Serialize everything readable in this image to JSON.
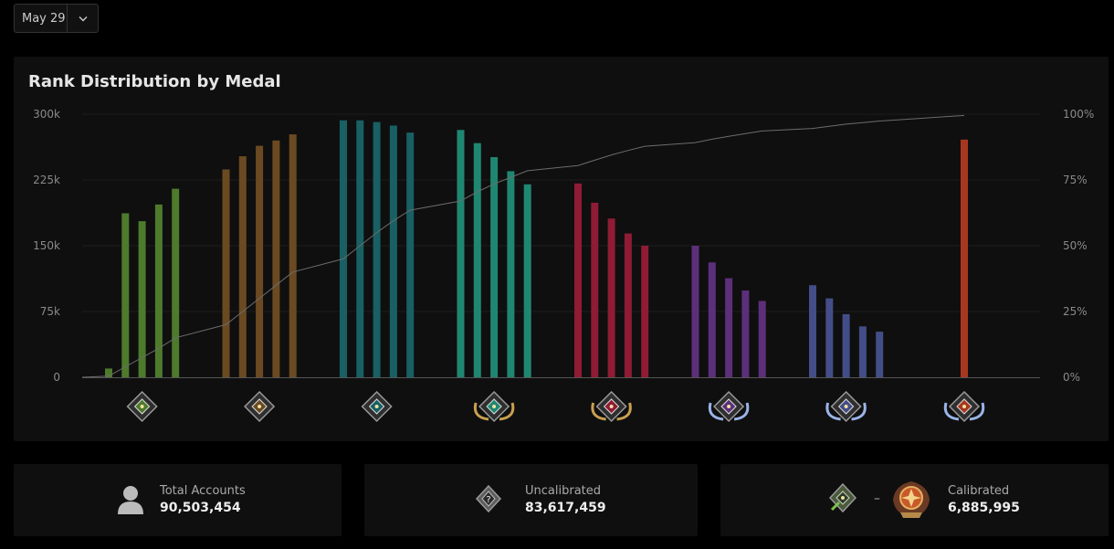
{
  "date_select": {
    "label": "May 29",
    "icon": "chevron-down-icon"
  },
  "chart_title": "Rank Distribution by Medal",
  "chart_data": {
    "type": "bar",
    "title": "Rank Distribution by Medal",
    "ylim": [
      0,
      300000
    ],
    "y_ticks": [
      "0",
      "75k",
      "150k",
      "225k",
      "300k"
    ],
    "y2_ticks": [
      "0%",
      "25%",
      "50%",
      "75%",
      "100%"
    ],
    "y2lim": [
      0,
      100
    ],
    "grid": true,
    "groups": [
      {
        "medal": "herald-medal-icon",
        "color": "#4e7a2c",
        "values": [
          10000,
          187000,
          178000,
          197000,
          215000
        ]
      },
      {
        "medal": "guardian-medal-icon",
        "color": "#6b4a22",
        "values": [
          237000,
          252000,
          264000,
          270000,
          277000
        ]
      },
      {
        "medal": "crusader-medal-icon",
        "color": "#186064",
        "values": [
          293000,
          293000,
          291000,
          287000,
          279000
        ]
      },
      {
        "medal": "archon-medal-icon",
        "color": "#1f8771",
        "values": [
          282000,
          267000,
          251000,
          235000,
          220000
        ]
      },
      {
        "medal": "legend-medal-icon",
        "color": "#8f1b35",
        "values": [
          221000,
          199000,
          181000,
          164000,
          150000
        ]
      },
      {
        "medal": "ancient-medal-icon",
        "color": "#5c2f7a",
        "values": [
          150000,
          131000,
          113000,
          99000,
          87000
        ]
      },
      {
        "medal": "divine-medal-icon",
        "color": "#434d88",
        "values": [
          105000,
          90000,
          72000,
          58000,
          52000
        ]
      },
      {
        "medal": "immortal-medal-icon",
        "color": "#a8371f",
        "values": [
          271000
        ]
      }
    ],
    "cumulative_percent": [
      0,
      0.4,
      4,
      7.5,
      11,
      15,
      20,
      25,
      30,
      35,
      40,
      45,
      50,
      55,
      59.5,
      63.5,
      67,
      70.5,
      73.5,
      76,
      78.5,
      80.5,
      82.5,
      84.5,
      86.2,
      87.8,
      89.2,
      90.5,
      91.6,
      92.6,
      93.6,
      94.6,
      95.4,
      96.2,
      96.8,
      97.4,
      99.5
    ]
  },
  "stats": [
    {
      "label": "Total Accounts",
      "value": "90,503,454",
      "icon": "user-icon"
    },
    {
      "label": "Uncalibrated",
      "value": "83,617,459",
      "icon": "uncalibrated-medal-icon"
    },
    {
      "label": "Calibrated",
      "value": "6,885,995",
      "icon": "herald-to-immortal-medal-icon",
      "separator": "–"
    }
  ]
}
